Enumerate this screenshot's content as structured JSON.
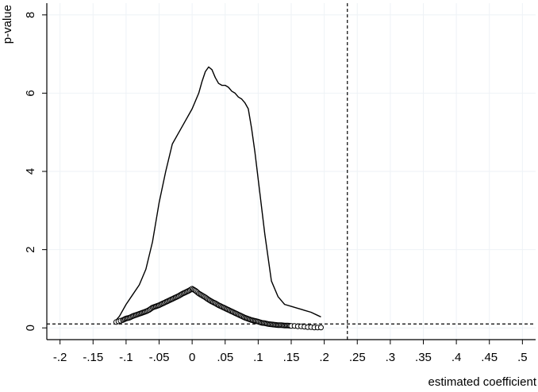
{
  "chart_data": {
    "type": "line",
    "title": "",
    "xlabel": "estimated coefficient",
    "ylabel": "p-value",
    "xlim": [
      -0.22,
      0.52
    ],
    "ylim": [
      -0.3,
      8.3
    ],
    "x_ticks": [
      -0.2,
      -0.15,
      -0.1,
      -0.05,
      0,
      0.05,
      0.1,
      0.15,
      0.2,
      0.25,
      0.3,
      0.35,
      0.4,
      0.45,
      0.5
    ],
    "x_tick_labels": [
      "-.2",
      "-.15",
      "-.1",
      "-.05",
      "0",
      ".05",
      ".1",
      ".15",
      ".2",
      ".25",
      ".3",
      ".35",
      ".4",
      ".45",
      ".5"
    ],
    "y_ticks": [
      0,
      2,
      4,
      6,
      8
    ],
    "y_tick_labels": [
      "0",
      "2",
      "4",
      "6",
      "8"
    ],
    "grid": true,
    "reference_lines": {
      "vertical_x": 0.235,
      "horizontal_y": 0.1
    },
    "series": [
      {
        "type": "line",
        "x": [
          -0.115,
          -0.11,
          -0.1,
          -0.09,
          -0.08,
          -0.07,
          -0.06,
          -0.05,
          -0.04,
          -0.03,
          -0.02,
          -0.01,
          0.0,
          0.01,
          0.015,
          0.02,
          0.025,
          0.03,
          0.035,
          0.04,
          0.045,
          0.05,
          0.055,
          0.06,
          0.065,
          0.07,
          0.075,
          0.08,
          0.085,
          0.09,
          0.095,
          0.1,
          0.105,
          0.11,
          0.115,
          0.12,
          0.13,
          0.14,
          0.15,
          0.16,
          0.17,
          0.18,
          0.19,
          0.195
        ],
        "y": [
          0.2,
          0.3,
          0.6,
          0.85,
          1.1,
          1.5,
          2.2,
          3.2,
          4.0,
          4.7,
          5.0,
          5.3,
          5.6,
          6.0,
          6.3,
          6.55,
          6.67,
          6.6,
          6.4,
          6.25,
          6.2,
          6.2,
          6.15,
          6.05,
          6.0,
          5.9,
          5.85,
          5.75,
          5.6,
          5.1,
          4.5,
          3.8,
          3.1,
          2.4,
          1.8,
          1.2,
          0.8,
          0.6,
          0.55,
          0.5,
          0.45,
          0.4,
          0.32,
          0.28
        ]
      },
      {
        "type": "scatter",
        "x": [
          -0.115,
          -0.105,
          -0.1,
          -0.095,
          -0.09,
          -0.085,
          -0.08,
          -0.075,
          -0.07,
          -0.065,
          -0.06,
          -0.055,
          -0.05,
          -0.045,
          -0.04,
          -0.035,
          -0.03,
          -0.025,
          -0.02,
          -0.015,
          -0.01,
          -0.005,
          0.0,
          0.005,
          0.01,
          0.015,
          0.02,
          0.025,
          0.03,
          0.035,
          0.04,
          0.045,
          0.05,
          0.055,
          0.06,
          0.065,
          0.07,
          0.075,
          0.08,
          0.085,
          0.09,
          0.095,
          0.1,
          0.105,
          0.11,
          0.115,
          0.12,
          0.125,
          0.13,
          0.135,
          0.14,
          0.145,
          0.15,
          0.155,
          0.16,
          0.165,
          0.17,
          0.175,
          0.18,
          0.185,
          0.19,
          0.195
        ],
        "y": [
          0.15,
          0.2,
          0.24,
          0.26,
          0.3,
          0.33,
          0.36,
          0.39,
          0.42,
          0.46,
          0.52,
          0.55,
          0.58,
          0.62,
          0.66,
          0.7,
          0.74,
          0.78,
          0.82,
          0.87,
          0.91,
          0.95,
          1.0,
          0.95,
          0.88,
          0.83,
          0.78,
          0.72,
          0.67,
          0.63,
          0.58,
          0.54,
          0.5,
          0.46,
          0.42,
          0.38,
          0.34,
          0.3,
          0.26,
          0.23,
          0.2,
          0.18,
          0.16,
          0.13,
          0.12,
          0.1,
          0.09,
          0.08,
          0.07,
          0.07,
          0.06,
          0.06,
          0.05,
          0.05,
          0.04,
          0.04,
          0.03,
          0.02,
          0.02,
          0.01,
          0.01,
          0.01
        ]
      }
    ]
  }
}
